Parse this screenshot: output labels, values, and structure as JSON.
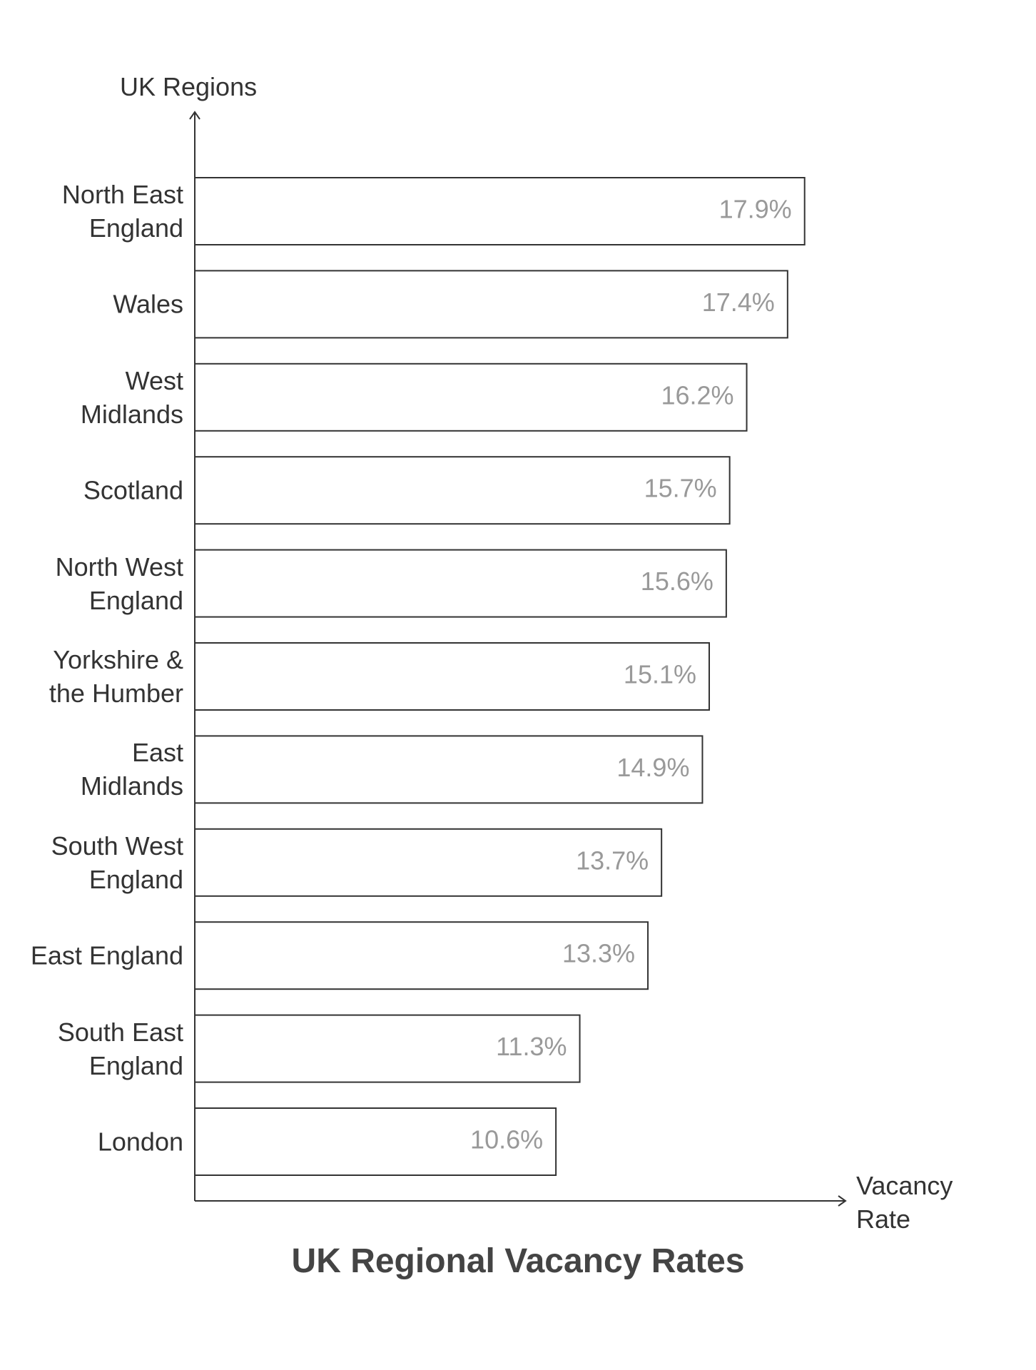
{
  "chart_data": {
    "type": "barh",
    "title": "UK Regional Vacancy Rates",
    "y_label": "UK Regions",
    "x_label": "Vacancy Rate",
    "categories": [
      "North East England",
      "Wales",
      "West Midlands",
      "Scotland",
      "North West England",
      "Yorkshire & the Humber",
      "East Midlands",
      "South West England",
      "East England",
      "South East England",
      "London"
    ],
    "values": [
      17.9,
      17.4,
      16.2,
      15.7,
      15.6,
      15.1,
      14.9,
      13.7,
      13.3,
      11.3,
      10.6
    ],
    "value_labels": [
      "17.9%",
      "17.4%",
      "16.2%",
      "15.7%",
      "15.6%",
      "15.1%",
      "14.9%",
      "13.7%",
      "13.3%",
      "11.3%",
      "10.6%"
    ],
    "xlim": [
      0,
      19.1
    ],
    "color": "#ffffff",
    "edgecolor": "#333333",
    "label_color": "#999999"
  }
}
